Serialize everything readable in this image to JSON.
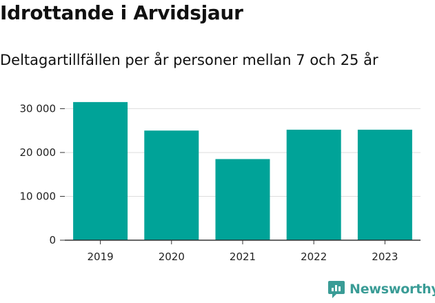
{
  "chart_data": {
    "type": "bar",
    "title": "Idrottande i Arvidsjaur",
    "subtitle": "Deltagartillfällen per år personer mellan 7 och 25 år",
    "categories": [
      "2019",
      "2020",
      "2021",
      "2022",
      "2023"
    ],
    "values": [
      31500,
      25000,
      18500,
      25200,
      25200
    ],
    "yticks": [
      0,
      10000,
      20000,
      30000
    ],
    "ytick_labels": [
      "0",
      "10 000",
      "20 000",
      "30 000"
    ],
    "ylim": [
      0,
      34000
    ],
    "grid": true,
    "bar_color": "#00a398"
  },
  "brand": {
    "name": "Newsworthy",
    "color": "#3a9c96",
    "icon": "newsworthy-logo-icon"
  }
}
